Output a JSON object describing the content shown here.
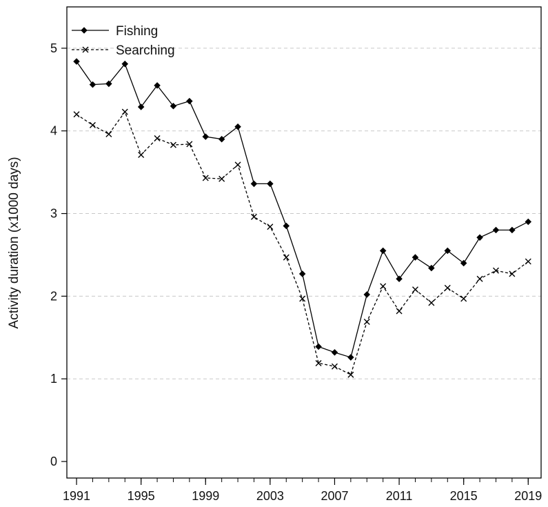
{
  "chart_data": {
    "type": "line",
    "title": "",
    "xlabel": "",
    "ylabel": "Activity duration (x1000 days)",
    "xlim": [
      1990.4,
      2019.8
    ],
    "ylim": [
      -0.2,
      5.5
    ],
    "x_ticks": [
      1991,
      1995,
      1999,
      2003,
      2007,
      2011,
      2015,
      2019
    ],
    "y_ticks": [
      0,
      1,
      2,
      3,
      4,
      5
    ],
    "grid": "horizontal-dashed",
    "legend_position": "top-left",
    "x": [
      1991,
      1992,
      1993,
      1994,
      1995,
      1996,
      1997,
      1998,
      1999,
      2000,
      2001,
      2002,
      2003,
      2004,
      2005,
      2006,
      2007,
      2008,
      2009,
      2010,
      2011,
      2012,
      2013,
      2014,
      2015,
      2016,
      2017,
      2018,
      2019
    ],
    "series": [
      {
        "name": "Fishing",
        "marker": "diamond",
        "line_style": "solid",
        "color": "#000000",
        "values": [
          4.84,
          4.56,
          4.57,
          4.81,
          4.29,
          4.55,
          4.3,
          4.36,
          3.93,
          3.9,
          4.05,
          3.36,
          3.36,
          2.85,
          2.27,
          1.39,
          1.32,
          1.26,
          2.02,
          2.55,
          2.21,
          2.47,
          2.34,
          2.55,
          2.4,
          2.71,
          2.8,
          2.8,
          2.9
        ]
      },
      {
        "name": "Searching",
        "marker": "x",
        "line_style": "dashed",
        "color": "#000000",
        "values": [
          4.2,
          4.07,
          3.96,
          4.23,
          3.71,
          3.91,
          3.83,
          3.84,
          3.43,
          3.42,
          3.59,
          2.96,
          2.84,
          2.47,
          1.97,
          1.19,
          1.15,
          1.05,
          1.69,
          2.12,
          1.82,
          2.08,
          1.92,
          2.1,
          1.97,
          2.21,
          2.31,
          2.27,
          2.42
        ]
      }
    ]
  }
}
